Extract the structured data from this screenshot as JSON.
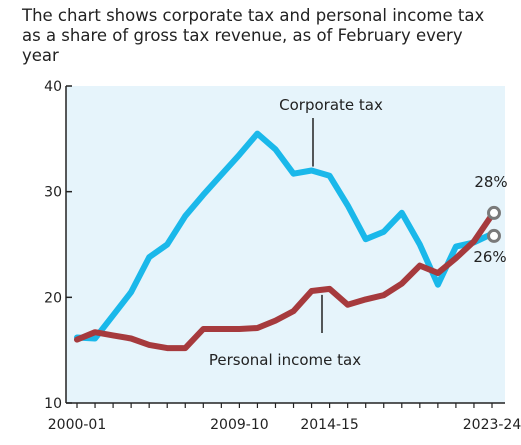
{
  "chart_data": {
    "type": "line",
    "title": "The chart shows corporate tax and personal income tax as a share of gross tax revenue, as of February every year",
    "xlabel": "",
    "ylabel": "",
    "ylim": [
      10,
      40
    ],
    "yticks": [
      10,
      20,
      30,
      40
    ],
    "x_tick_labels": [
      "2000-01",
      "2009-10",
      "2014-15",
      "2023-24"
    ],
    "x_tick_indices": [
      0,
      9,
      14,
      23
    ],
    "x": [
      "2000-01",
      "2001-02",
      "2002-03",
      "2003-04",
      "2004-05",
      "2005-06",
      "2006-07",
      "2007-08",
      "2008-09",
      "2009-10",
      "2010-11",
      "2011-12",
      "2012-13",
      "2013-14",
      "2014-15",
      "2015-16",
      "2016-17",
      "2017-18",
      "2018-19",
      "2019-20",
      "2020-21",
      "2021-22",
      "2022-23",
      "2023-24"
    ],
    "series": [
      {
        "name": "Corporate tax",
        "color": "#1ab8ea",
        "values": [
          16.2,
          16.1,
          18.3,
          20.5,
          23.8,
          25.0,
          27.7,
          29.7,
          31.6,
          33.5,
          35.5,
          34.0,
          31.7,
          32.0,
          31.5,
          28.7,
          25.5,
          26.2,
          28.0,
          25.0,
          21.2,
          24.8,
          25.2,
          26.0
        ]
      },
      {
        "name": "Personal income tax",
        "color": "#a63a3d",
        "values": [
          16.0,
          16.7,
          16.4,
          16.1,
          15.5,
          15.2,
          15.2,
          17.0,
          17.0,
          17.0,
          17.1,
          17.8,
          18.7,
          20.6,
          20.8,
          19.3,
          19.8,
          20.2,
          21.3,
          23.0,
          22.3,
          23.7,
          25.3,
          27.8
        ]
      }
    ],
    "annotations": {
      "corporate_label": "Corporate tax",
      "personal_label": "Personal income tax",
      "corporate_end": "26%",
      "personal_end": "28%"
    },
    "grid": false,
    "background": "#e6f4fb"
  }
}
